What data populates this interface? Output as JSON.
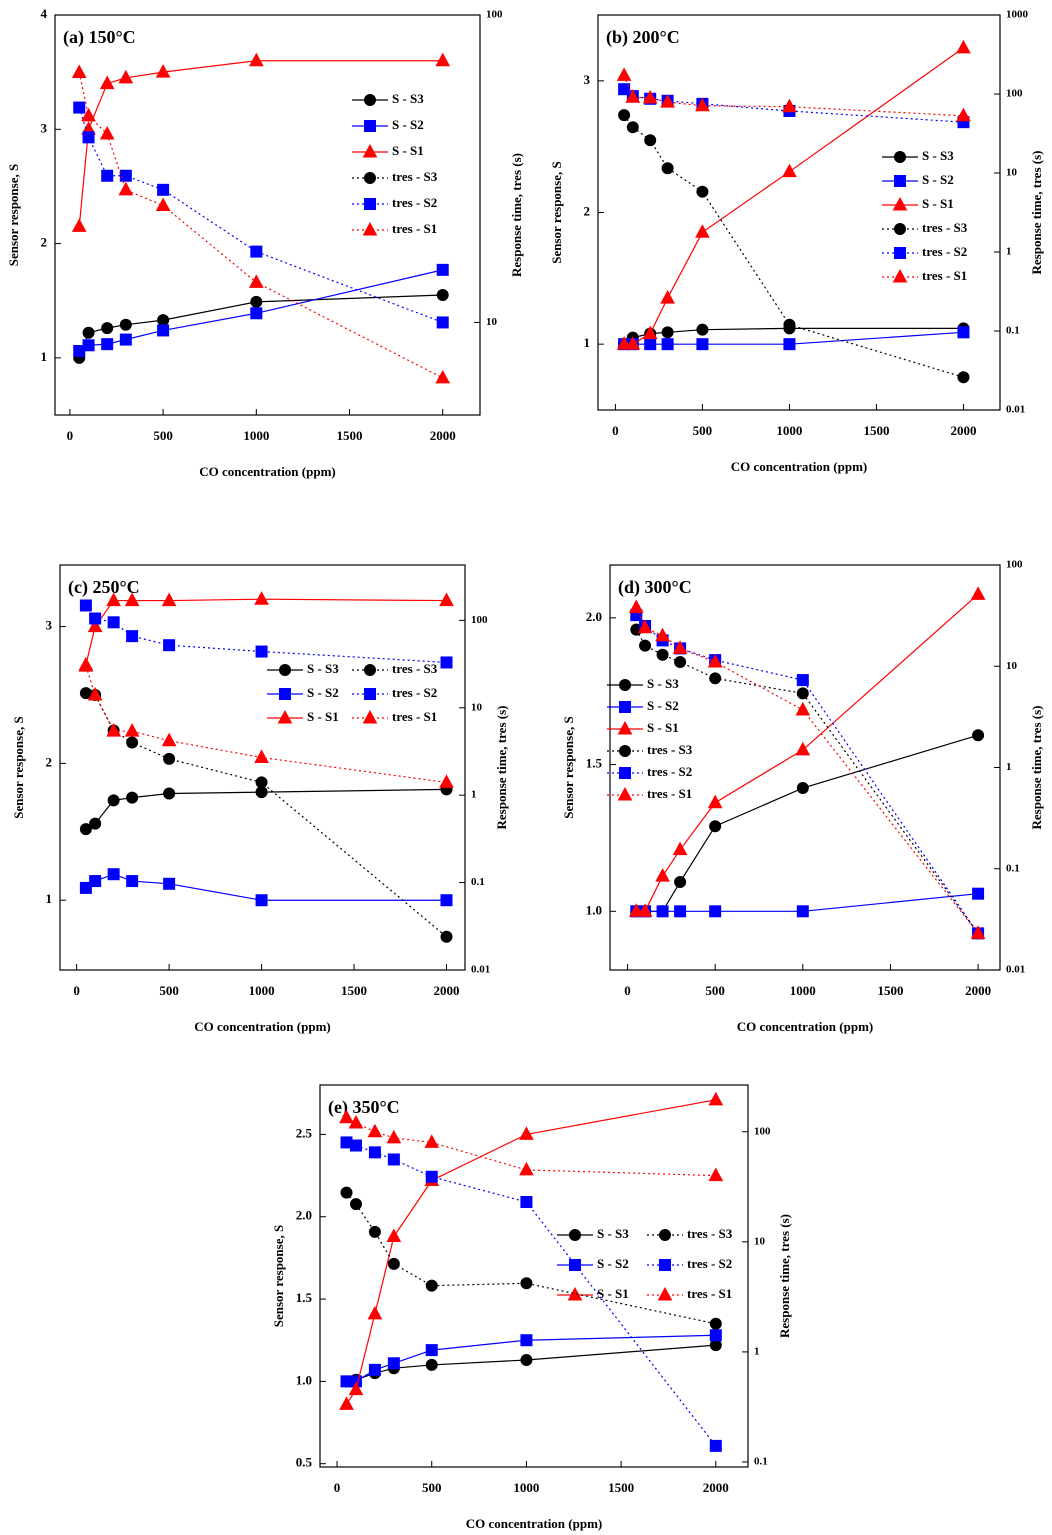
{
  "chart_data": [
    {
      "type": "line",
      "title": "(a) 150°C",
      "x_label": "CO concentration (ppm)",
      "y_label": "Sensor response, S",
      "y2_label": "Response time, tres (s)",
      "x": [
        50,
        100,
        200,
        300,
        500,
        1000,
        2000
      ],
      "xlim": [
        -80,
        2200
      ],
      "xticks": [
        0,
        500,
        1000,
        1500,
        2000
      ],
      "ylim": [
        0.5,
        4
      ],
      "yticks": [
        1,
        2,
        3,
        4
      ],
      "y2lim": [
        5,
        100
      ],
      "y2ticks": [
        10,
        100
      ],
      "y2_log": true,
      "series": [
        {
          "name": "S - S3",
          "color": "#000000",
          "line_style": "solid",
          "marker": "circle",
          "values": [
            1.0,
            1.22,
            1.26,
            1.29,
            1.33,
            1.49,
            1.55
          ]
        },
        {
          "name": "S - S2",
          "color": "#0000ff",
          "line_style": "solid",
          "marker": "square",
          "values": [
            1.06,
            1.11,
            1.12,
            1.16,
            1.24,
            1.39,
            1.77
          ]
        },
        {
          "name": "S - S1",
          "color": "#ff0000",
          "line_style": "solid",
          "marker": "triangle",
          "values": [
            2.15,
            3.0,
            3.4,
            3.45,
            3.5,
            3.6,
            3.6
          ]
        },
        {
          "name": "tres - S3",
          "color": "#000000",
          "line_style": "dotted",
          "marker": "circle",
          "axis": "y2",
          "values": [
            null,
            null,
            null,
            null,
            null,
            null,
            null
          ]
        },
        {
          "name": "tres - S2",
          "color": "#0000ff",
          "line_style": "dotted",
          "marker": "square",
          "axis": "y2",
          "values": [
            50,
            40,
            30,
            30,
            27,
            17,
            10
          ]
        },
        {
          "name": "tres - S1",
          "color": "#ff0000",
          "line_style": "dotted",
          "marker": "triangle",
          "axis": "y2",
          "values": [
            65,
            47,
            41,
            27,
            24,
            13.5,
            6.6
          ]
        }
      ]
    },
    {
      "type": "line",
      "title": "(b) 200°C",
      "x_label": "CO concentration (ppm)",
      "y_label": "Sensor response, S",
      "y2_label": "Response time, tres (s)",
      "x": [
        50,
        100,
        200,
        300,
        500,
        1000,
        2000
      ],
      "xlim": [
        -100,
        2210
      ],
      "xticks": [
        0,
        500,
        1000,
        1500,
        2000
      ],
      "ylim": [
        0.5,
        3.5
      ],
      "yticks": [
        1,
        2,
        3
      ],
      "y2lim": [
        0.01,
        1000
      ],
      "y2ticks": [
        0.01,
        0.1,
        1,
        10,
        100,
        1000
      ],
      "y2_log": true,
      "series": [
        {
          "name": "S - S3",
          "color": "#000000",
          "line_style": "solid",
          "marker": "circle",
          "values": [
            1.0,
            1.05,
            1.08,
            1.09,
            1.11,
            1.12,
            1.12
          ]
        },
        {
          "name": "S - S2",
          "color": "#0000ff",
          "line_style": "solid",
          "marker": "square",
          "values": [
            1.0,
            1.0,
            1.0,
            1.0,
            1.0,
            1.0,
            1.09
          ]
        },
        {
          "name": "S - S1",
          "color": "#ff0000",
          "line_style": "solid",
          "marker": "triangle",
          "values": [
            1.0,
            1.0,
            1.08,
            1.35,
            1.85,
            2.31,
            3.25
          ]
        },
        {
          "name": "tres - S3",
          "color": "#000000",
          "line_style": "dotted",
          "marker": "circle",
          "axis": "y2",
          "values": [
            54,
            38,
            26,
            11.5,
            5.8,
            0.12,
            0.026
          ]
        },
        {
          "name": "tres - S2",
          "color": "#0000ff",
          "line_style": "dotted",
          "marker": "square",
          "axis": "y2",
          "values": [
            115,
            94,
            87,
            82,
            75,
            61,
            44
          ]
        },
        {
          "name": "tres - S1",
          "color": "#ff0000",
          "line_style": "dotted",
          "marker": "triangle",
          "axis": "y2",
          "values": [
            172,
            91,
            89,
            79,
            71,
            69,
            53
          ]
        }
      ]
    },
    {
      "type": "line",
      "title": "(c) 250°C",
      "x_label": "CO concentration (ppm)",
      "y_label": "Sensor response, S",
      "y2_label": "Response time, tres (s)",
      "x": [
        50,
        100,
        200,
        300,
        500,
        1000,
        2000
      ],
      "xlim": [
        -90,
        2100
      ],
      "xticks": [
        0,
        500,
        1000,
        1500,
        2000
      ],
      "ylim": [
        0.49,
        3.45
      ],
      "yticks": [
        1,
        2,
        3
      ],
      "y2lim": [
        0.01,
        430
      ],
      "y2ticks": [
        0.01,
        0.1,
        1,
        10,
        100
      ],
      "y2_log": true,
      "series": [
        {
          "name": "S - S3",
          "color": "#000000",
          "line_style": "solid",
          "marker": "circle",
          "values": [
            1.52,
            1.56,
            1.73,
            1.75,
            1.78,
            1.79,
            1.81
          ]
        },
        {
          "name": "S - S2",
          "color": "#0000ff",
          "line_style": "solid",
          "marker": "square",
          "values": [
            1.09,
            1.14,
            1.19,
            1.14,
            1.12,
            1.0,
            1.0
          ]
        },
        {
          "name": "S - S1",
          "color": "#ff0000",
          "line_style": "solid",
          "marker": "triangle",
          "values": [
            2.72,
            3.0,
            3.19,
            3.19,
            3.19,
            3.2,
            3.19
          ]
        },
        {
          "name": "tres - S3",
          "color": "#000000",
          "line_style": "dotted",
          "marker": "circle",
          "axis": "y2",
          "values": [
            14.7,
            14,
            5.5,
            4.0,
            2.6,
            1.4,
            0.024
          ]
        },
        {
          "name": "tres - S2",
          "color": "#0000ff",
          "line_style": "dotted",
          "marker": "square",
          "axis": "y2",
          "values": [
            148,
            105,
            95,
            66,
            52,
            44,
            33
          ]
        },
        {
          "name": "tres - S1",
          "color": "#ff0000",
          "line_style": "dotted",
          "marker": "triangle",
          "axis": "y2",
          "values": [
            30,
            14,
            5.4,
            5.4,
            4.2,
            2.7,
            1.4
          ]
        }
      ]
    },
    {
      "type": "line",
      "title": "(d) 300°C",
      "x_label": "CO concentration (ppm)",
      "y_label": "Sensor response, S",
      "y2_label": "Response time, tres (s)",
      "x": [
        50,
        100,
        200,
        300,
        500,
        1000,
        2000
      ],
      "xlim": [
        -100,
        2125
      ],
      "xticks": [
        0,
        500,
        1000,
        1500,
        2000
      ],
      "ylim": [
        0.8,
        2.18
      ],
      "yticks": [
        {
          "value": 1,
          "label": "1.0"
        },
        1.5,
        {
          "value": 2,
          "label": "2.0"
        }
      ],
      "y2lim": [
        0.01,
        100
      ],
      "y2ticks": [
        0.01,
        0.1,
        1,
        10,
        100
      ],
      "y2_log": true,
      "series": [
        {
          "name": "S - S3",
          "color": "#000000",
          "line_style": "solid",
          "marker": "circle",
          "values": [
            1.0,
            1.0,
            1.0,
            1.1,
            1.29,
            1.42,
            1.6
          ]
        },
        {
          "name": "S - S2",
          "color": "#0000ff",
          "line_style": "solid",
          "marker": "square",
          "values": [
            1.0,
            1.0,
            1.0,
            1.0,
            1.0,
            1.0,
            1.06
          ]
        },
        {
          "name": "S - S1",
          "color": "#ff0000",
          "line_style": "solid",
          "marker": "triangle",
          "values": [
            1.0,
            1.0,
            1.12,
            1.21,
            1.37,
            1.55,
            2.08
          ]
        },
        {
          "name": "tres - S3",
          "color": "#000000",
          "line_style": "dotted",
          "marker": "circle",
          "axis": "y2",
          "values": [
            23,
            16,
            13,
            11,
            7.6,
            5.4,
            0.023
          ]
        },
        {
          "name": "tres - S2",
          "color": "#0000ff",
          "line_style": "dotted",
          "marker": "square",
          "axis": "y2",
          "values": [
            32,
            25,
            18,
            15,
            11.5,
            7.3,
            0.023
          ]
        },
        {
          "name": "tres - S1",
          "color": "#ff0000",
          "line_style": "dotted",
          "marker": "triangle",
          "axis": "y2",
          "values": [
            38,
            24,
            20,
            15,
            11,
            3.7,
            0.023
          ]
        }
      ]
    },
    {
      "type": "line",
      "title": "(e) 350°C",
      "x_label": "CO concentration (ppm)",
      "y_label": "Sensor response, S",
      "y2_label": "Response time, tres (s)",
      "x": [
        50,
        100,
        200,
        300,
        500,
        1000,
        2000
      ],
      "xlim": [
        -90,
        2170
      ],
      "xticks": [
        0,
        500,
        1000,
        1500,
        2000
      ],
      "ylim": [
        0.48,
        2.8
      ],
      "yticks": [
        0.5,
        {
          "value": 1,
          "label": "1.0"
        },
        1.5,
        {
          "value": 2,
          "label": "2.0"
        },
        2.5
      ],
      "y2lim": [
        0.09,
        266
      ],
      "y2ticks": [
        0.1,
        1,
        10,
        100
      ],
      "y2_log": true,
      "series": [
        {
          "name": "S - S3",
          "color": "#000000",
          "line_style": "solid",
          "marker": "circle",
          "values": [
            1.0,
            1.01,
            1.05,
            1.08,
            1.1,
            1.13,
            1.22
          ]
        },
        {
          "name": "S - S2",
          "color": "#0000ff",
          "line_style": "solid",
          "marker": "square",
          "values": [
            1.0,
            1.0,
            1.07,
            1.11,
            1.19,
            1.25,
            1.28
          ]
        },
        {
          "name": "S - S1",
          "color": "#ff0000",
          "line_style": "solid",
          "marker": "triangle",
          "values": [
            0.86,
            0.95,
            1.41,
            1.88,
            2.22,
            2.5,
            2.71
          ]
        },
        {
          "name": "tres - S3",
          "color": "#000000",
          "line_style": "dotted",
          "marker": "circle",
          "axis": "y2",
          "values": [
            28,
            22,
            12.3,
            6.3,
            4.0,
            4.2,
            1.8
          ]
        },
        {
          "name": "tres - S2",
          "color": "#0000ff",
          "line_style": "dotted",
          "marker": "square",
          "axis": "y2",
          "values": [
            80,
            75,
            65,
            56,
            39,
            23,
            0.14
          ]
        },
        {
          "name": "tres - S1",
          "color": "#ff0000",
          "line_style": "dotted",
          "marker": "triangle",
          "axis": "y2",
          "values": [
            134,
            120,
            100,
            88,
            80,
            45,
            40
          ]
        }
      ]
    }
  ]
}
